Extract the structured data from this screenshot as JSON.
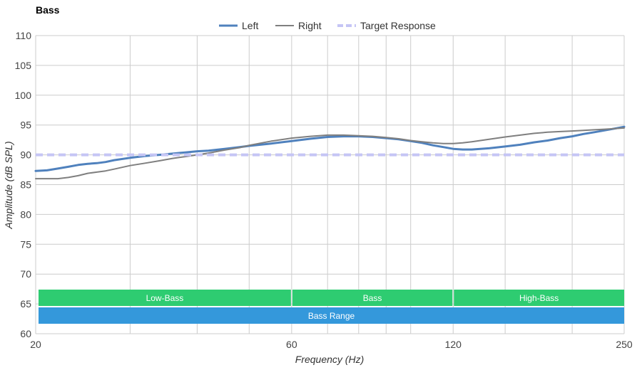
{
  "chart_data": {
    "type": "line",
    "title": "Bass",
    "xlabel": "Frequency (Hz)",
    "ylabel": "Amplitude (dB SPL)",
    "xscale": "log",
    "xlim": [
      20,
      250
    ],
    "ylim": [
      60,
      110
    ],
    "yticks": [
      60,
      65,
      70,
      75,
      80,
      85,
      90,
      95,
      100,
      105,
      110
    ],
    "xtick_labels": [
      20,
      60,
      120,
      250
    ],
    "x_gridlines": [
      20,
      30,
      40,
      50,
      60,
      70,
      80,
      90,
      100,
      120,
      150,
      200,
      250
    ],
    "grid": true,
    "legend_position": "top-center",
    "series": [
      {
        "name": "Left",
        "color": "#4f81bd",
        "style": "solid-thick",
        "x": [
          20,
          21,
          22,
          23,
          24,
          25,
          26,
          27,
          28,
          30,
          32,
          34,
          36,
          38,
          40,
          42,
          45,
          48,
          50,
          55,
          60,
          65,
          70,
          75,
          80,
          85,
          90,
          95,
          100,
          105,
          110,
          115,
          120,
          125,
          130,
          140,
          150,
          160,
          170,
          180,
          190,
          200,
          210,
          220,
          230,
          240,
          250
        ],
        "y": [
          87.3,
          87.4,
          87.7,
          88.0,
          88.3,
          88.5,
          88.6,
          88.8,
          89.1,
          89.5,
          89.8,
          90.0,
          90.2,
          90.4,
          90.6,
          90.7,
          91.0,
          91.3,
          91.5,
          91.9,
          92.3,
          92.7,
          93.0,
          93.1,
          93.1,
          93.0,
          92.8,
          92.6,
          92.3,
          92.0,
          91.6,
          91.3,
          91.0,
          90.9,
          90.9,
          91.1,
          91.4,
          91.7,
          92.1,
          92.4,
          92.8,
          93.1,
          93.5,
          93.8,
          94.1,
          94.4,
          94.7
        ]
      },
      {
        "name": "Right",
        "color": "#7f7f7f",
        "style": "solid",
        "x": [
          20,
          21,
          22,
          23,
          24,
          25,
          26,
          27,
          28,
          30,
          32,
          34,
          36,
          38,
          40,
          42,
          45,
          48,
          50,
          55,
          60,
          65,
          70,
          75,
          80,
          85,
          90,
          95,
          100,
          105,
          110,
          115,
          120,
          125,
          130,
          140,
          150,
          160,
          170,
          180,
          190,
          200,
          210,
          220,
          230,
          240,
          250
        ],
        "y": [
          86.0,
          86.0,
          86.0,
          86.2,
          86.5,
          86.9,
          87.1,
          87.3,
          87.6,
          88.2,
          88.6,
          89.0,
          89.4,
          89.7,
          90.0,
          90.3,
          90.8,
          91.2,
          91.6,
          92.3,
          92.8,
          93.1,
          93.3,
          93.3,
          93.2,
          93.1,
          92.9,
          92.7,
          92.4,
          92.2,
          92.0,
          91.9,
          91.9,
          92.0,
          92.2,
          92.6,
          93.0,
          93.3,
          93.6,
          93.8,
          93.9,
          94.0,
          94.1,
          94.2,
          94.3,
          94.4,
          94.5
        ]
      },
      {
        "name": "Target Response",
        "color": "#c5c5f5",
        "style": "dashed",
        "x": [
          20,
          250
        ],
        "y": [
          90,
          90
        ]
      }
    ],
    "bands": [
      {
        "label": "Low-Bass",
        "from": 20,
        "to": 60,
        "row": 0,
        "color": "#2ecc71"
      },
      {
        "label": "Bass",
        "from": 60,
        "to": 120,
        "row": 0,
        "color": "#2ecc71"
      },
      {
        "label": "High-Bass",
        "from": 120,
        "to": 250,
        "row": 0,
        "color": "#2ecc71"
      },
      {
        "label": "Bass Range",
        "from": 20,
        "to": 250,
        "row": 1,
        "color": "#3498db"
      }
    ]
  }
}
